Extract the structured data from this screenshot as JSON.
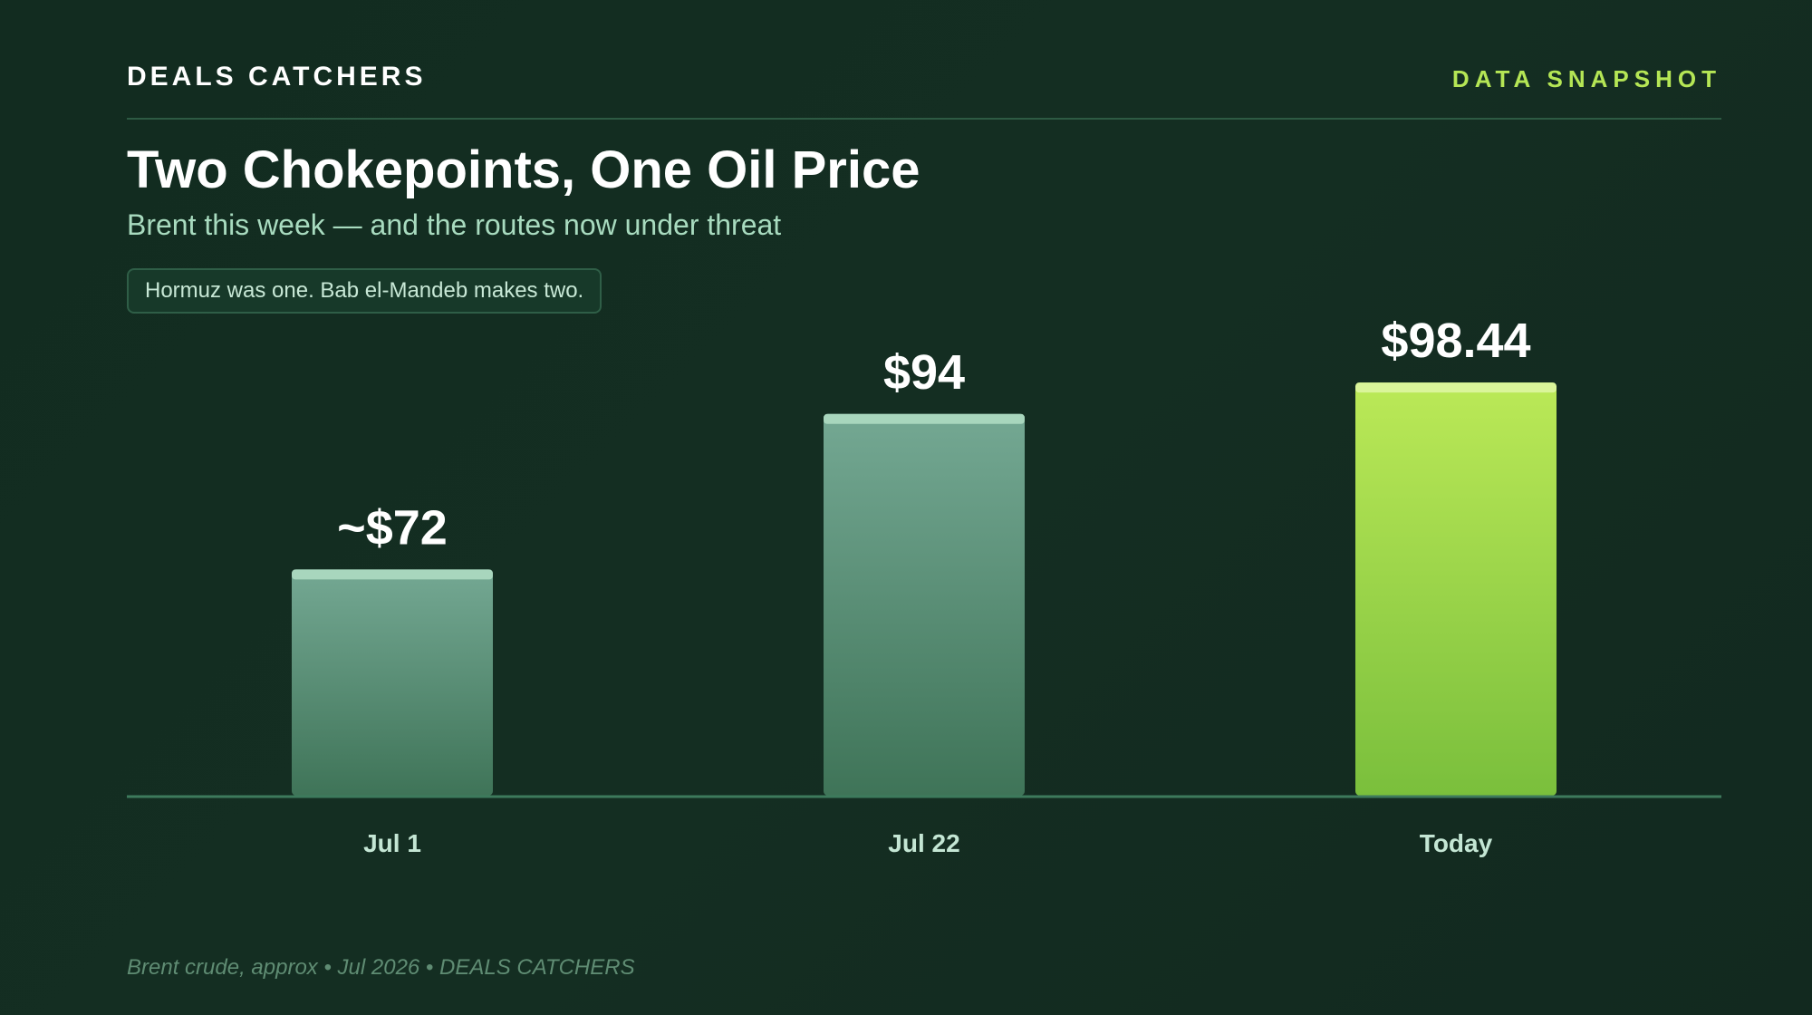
{
  "header": {
    "brand": "DEALS CATCHERS",
    "tag": "DATA SNAPSHOT"
  },
  "title": "Two Chokepoints, One Oil Price",
  "subtitle": "Brent this week — and the routes now under threat",
  "callout": "Hormuz was one. Bab el-Mandeb makes two.",
  "footer": "Brent crude, approx • Jul 2026 • DEALS CATCHERS",
  "colors": {
    "accent": "#b5e655",
    "bar_muted_top": "#74a893",
    "bar_muted_bottom": "#3f7458",
    "bar_highlight_top": "#bbe957",
    "bar_highlight_bottom": "#7abf3c",
    "axis": "#3d7a5c"
  },
  "chart_data": {
    "type": "bar",
    "categories": [
      "Jul 1",
      "Jul 22",
      "Today"
    ],
    "values": [
      72,
      94,
      98.44
    ],
    "value_labels": [
      "~$72",
      "$94",
      "$98.44"
    ],
    "highlight_index": 2,
    "ylim": [
      40,
      100
    ],
    "grid": false,
    "legend": "none"
  }
}
